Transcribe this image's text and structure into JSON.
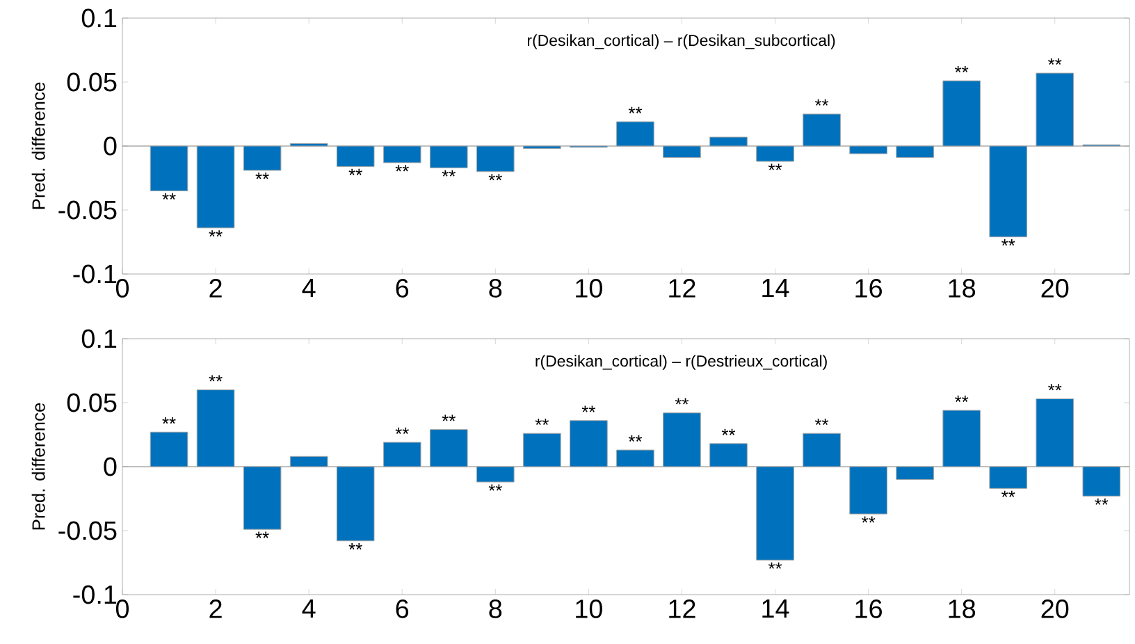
{
  "chart_data": [
    {
      "type": "bar",
      "title": "r(Desikan_cortical) – r(Desikan_subcortical)",
      "ylabel": "Pred. difference",
      "color": "#0072bd",
      "x": [
        1,
        2,
        3,
        4,
        5,
        6,
        7,
        8,
        9,
        10,
        11,
        12,
        13,
        14,
        15,
        16,
        17,
        18,
        19,
        20,
        21
      ],
      "values": [
        -0.035,
        -0.064,
        -0.019,
        0.002,
        -0.016,
        -0.013,
        -0.017,
        -0.02,
        -0.002,
        -0.001,
        0.019,
        -0.009,
        0.007,
        -0.012,
        0.025,
        -0.006,
        -0.009,
        0.051,
        -0.071,
        0.057,
        0.001
      ],
      "xlim": [
        0,
        21.6
      ],
      "ylim": [
        -0.1,
        0.1
      ],
      "xticks": [
        0,
        2,
        4,
        6,
        8,
        10,
        12,
        14,
        16,
        18,
        20
      ],
      "yticks": [
        -0.1,
        -0.05,
        0,
        0.05,
        0.1
      ],
      "ref_lines": [
        {
          "axis": "y",
          "value": 0,
          "color": "#808080"
        }
      ],
      "annotations": [
        {
          "text": "**",
          "x": 1,
          "y": -0.035
        },
        {
          "text": "**",
          "x": 2,
          "y": -0.064
        },
        {
          "text": "**",
          "x": 3,
          "y": -0.019
        },
        {
          "text": "**",
          "x": 5,
          "y": -0.016
        },
        {
          "text": "**",
          "x": 6,
          "y": -0.013
        },
        {
          "text": "**",
          "x": 7,
          "y": -0.017
        },
        {
          "text": "**",
          "x": 8,
          "y": -0.02
        },
        {
          "text": "**",
          "x": 11,
          "y": 0.019
        },
        {
          "text": "**",
          "x": 14,
          "y": -0.012
        },
        {
          "text": "**",
          "x": 15,
          "y": 0.025
        },
        {
          "text": "**",
          "x": 18,
          "y": 0.051
        },
        {
          "text": "**",
          "x": 19,
          "y": -0.071
        },
        {
          "text": "**",
          "x": 20,
          "y": 0.057
        }
      ]
    },
    {
      "type": "bar",
      "title": "r(Desikan_cortical) – r(Destrieux_cortical)",
      "ylabel": "Pred. difference",
      "color": "#0072bd",
      "x": [
        1,
        2,
        3,
        4,
        5,
        6,
        7,
        8,
        9,
        10,
        11,
        12,
        13,
        14,
        15,
        16,
        17,
        18,
        19,
        20,
        21
      ],
      "values": [
        0.027,
        0.06,
        -0.049,
        0.008,
        -0.058,
        0.019,
        0.029,
        -0.012,
        0.026,
        0.036,
        0.013,
        0.042,
        0.018,
        -0.073,
        0.026,
        -0.037,
        -0.01,
        0.044,
        -0.017,
        0.053,
        -0.023
      ],
      "xlim": [
        0,
        21.6
      ],
      "ylim": [
        -0.1,
        0.1
      ],
      "xticks": [
        0,
        2,
        4,
        6,
        8,
        10,
        12,
        14,
        16,
        18,
        20
      ],
      "yticks": [
        -0.1,
        -0.05,
        0,
        0.05,
        0.1
      ],
      "ref_lines": [
        {
          "axis": "y",
          "value": 0,
          "color": "#808080"
        }
      ],
      "annotations": [
        {
          "text": "**",
          "x": 1,
          "y": 0.027
        },
        {
          "text": "**",
          "x": 2,
          "y": 0.06
        },
        {
          "text": "**",
          "x": 3,
          "y": -0.049
        },
        {
          "text": "**",
          "x": 5,
          "y": -0.058
        },
        {
          "text": "**",
          "x": 6,
          "y": 0.019
        },
        {
          "text": "**",
          "x": 7,
          "y": 0.029
        },
        {
          "text": "**",
          "x": 8,
          "y": -0.012
        },
        {
          "text": "**",
          "x": 9,
          "y": 0.026
        },
        {
          "text": "**",
          "x": 10,
          "y": 0.036
        },
        {
          "text": "**",
          "x": 11,
          "y": 0.013
        },
        {
          "text": "**",
          "x": 12,
          "y": 0.042
        },
        {
          "text": "**",
          "x": 13,
          "y": 0.018
        },
        {
          "text": "**",
          "x": 14,
          "y": -0.073
        },
        {
          "text": "**",
          "x": 15,
          "y": 0.026
        },
        {
          "text": "**",
          "x": 16,
          "y": -0.037
        },
        {
          "text": "**",
          "x": 18,
          "y": 0.044
        },
        {
          "text": "**",
          "x": 19,
          "y": -0.017
        },
        {
          "text": "**",
          "x": 20,
          "y": 0.053
        },
        {
          "text": "**",
          "x": 21,
          "y": -0.023
        }
      ]
    }
  ]
}
